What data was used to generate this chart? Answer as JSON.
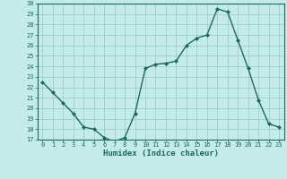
{
  "x": [
    0,
    1,
    2,
    3,
    4,
    5,
    6,
    7,
    8,
    9,
    10,
    11,
    12,
    13,
    14,
    15,
    16,
    17,
    18,
    19,
    20,
    21,
    22,
    23
  ],
  "y": [
    22.5,
    21.5,
    20.5,
    19.5,
    18.2,
    18.0,
    17.2,
    16.8,
    17.2,
    19.5,
    23.8,
    24.2,
    24.3,
    24.5,
    26.0,
    26.7,
    27.0,
    29.5,
    29.2,
    26.5,
    23.8,
    20.8,
    18.5,
    18.2
  ],
  "xlabel": "Humidex (Indice chaleur)",
  "ylabel": "",
  "title": "",
  "bg_color": "#c5eaea",
  "line_color": "#1a6b5a",
  "marker_color": "#1a6b5a",
  "grid_color": "#9ecece",
  "xlim_min": -0.5,
  "xlim_max": 23.5,
  "ylim_min": 17,
  "ylim_max": 30,
  "yticks": [
    17,
    18,
    19,
    20,
    21,
    22,
    23,
    24,
    25,
    26,
    27,
    28,
    29,
    30
  ],
  "xticks": [
    0,
    1,
    2,
    3,
    4,
    5,
    6,
    7,
    8,
    9,
    10,
    11,
    12,
    13,
    14,
    15,
    16,
    17,
    18,
    19,
    20,
    21,
    22,
    23
  ],
  "xlabel_fontsize": 6.5,
  "tick_fontsize": 5.0
}
